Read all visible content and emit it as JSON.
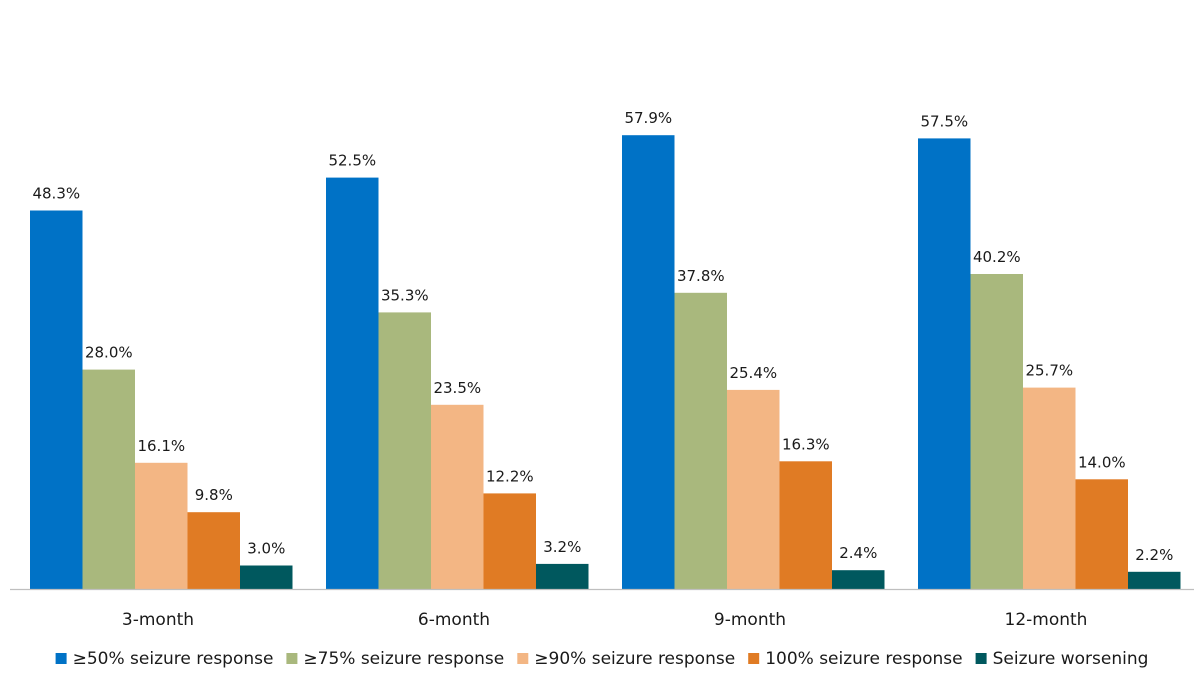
{
  "chart_data": {
    "type": "bar",
    "categories": [
      "3-month",
      "6-month",
      "9-month",
      "12-month"
    ],
    "series": [
      {
        "name": "≥50% seizure response",
        "color": "#0072C6",
        "values": [
          48.3,
          52.5,
          57.9,
          57.5
        ]
      },
      {
        "name": "≥75% seizure response",
        "color": "#A9B87D",
        "values": [
          28.0,
          35.3,
          37.8,
          40.2
        ]
      },
      {
        "name": "≥90% seizure response",
        "color": "#F3B684",
        "values": [
          16.1,
          23.5,
          25.4,
          25.7
        ]
      },
      {
        "name": "100% seizure response",
        "color": "#E07B24",
        "values": [
          9.8,
          12.2,
          16.3,
          14.0
        ]
      },
      {
        "name": "Seizure worsening",
        "color": "#00585E",
        "values": [
          3.0,
          3.2,
          2.4,
          2.2
        ]
      }
    ],
    "value_suffix": "%",
    "ylim": [
      0,
      62
    ],
    "grid": false,
    "legend_position": "bottom",
    "xlabel": "",
    "ylabel": "",
    "title": ""
  }
}
